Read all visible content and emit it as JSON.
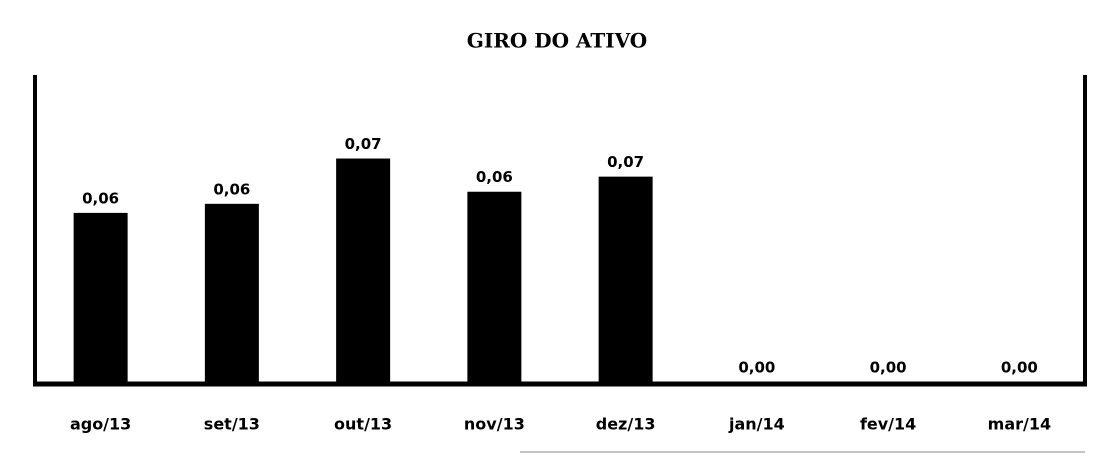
{
  "chart_data": {
    "type": "bar",
    "title": "GIRO DO ATIVO",
    "categories": [
      "ago/13",
      "set/13",
      "out/13",
      "nov/13",
      "dez/13",
      "jan/14",
      "fev/14",
      "mar/14"
    ],
    "values": [
      0.056,
      0.059,
      0.074,
      0.063,
      0.068,
      0,
      0,
      0
    ],
    "value_labels": [
      "0,06",
      "0,06",
      "0,07",
      "0,06",
      "0,07",
      "0,00",
      "0,00",
      "0,00"
    ],
    "color": "#000000",
    "ylim": [
      0,
      0.1
    ]
  }
}
